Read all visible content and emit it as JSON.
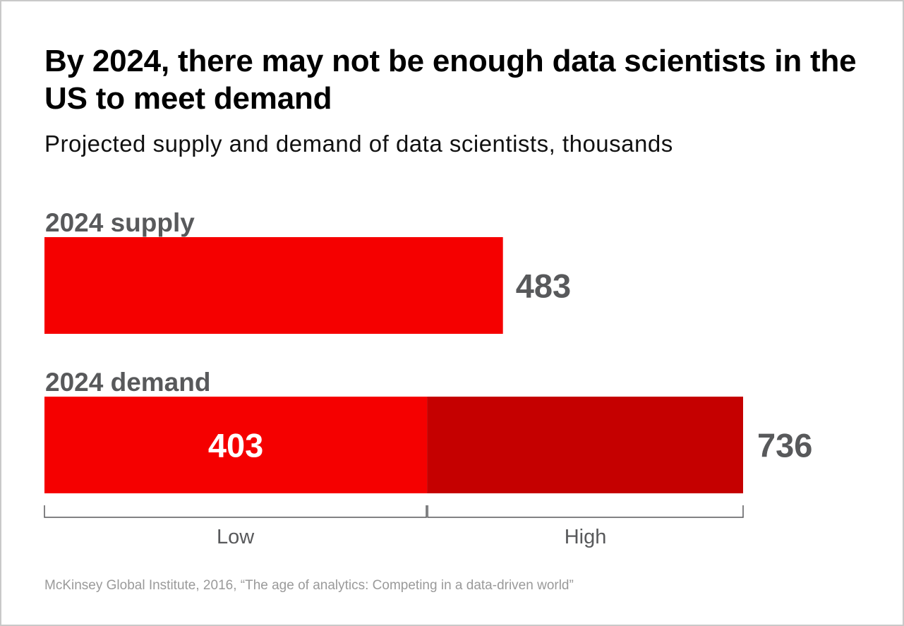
{
  "chart_data": {
    "type": "bar",
    "title": "By 2024, there may not be enough data scientists in the US to meet demand",
    "subtitle": "Projected supply and demand of data scientists, thousands",
    "unit": "thousands",
    "categories": [
      "2024 supply",
      "2024 demand"
    ],
    "supply": {
      "label": "2024 supply",
      "value": 483,
      "value_label": "483"
    },
    "demand": {
      "label": "2024 demand",
      "low": {
        "value": 403,
        "value_label": "403",
        "bracket_label": "Low"
      },
      "high": {
        "value": 736,
        "value_label": "736",
        "bracket_label": "High"
      }
    },
    "colors": {
      "supply": "#f50000",
      "demand_low": "#f50000",
      "demand_high": "#c50000",
      "category_label": "#58595b",
      "value_label": "#58595b",
      "inner_value_label": "#ffffff",
      "bracket": "#58595b"
    },
    "grid": false,
    "legend": "none"
  },
  "source": "McKinsey Global Institute, 2016, “The age of analytics: Competing in a data-driven world”"
}
